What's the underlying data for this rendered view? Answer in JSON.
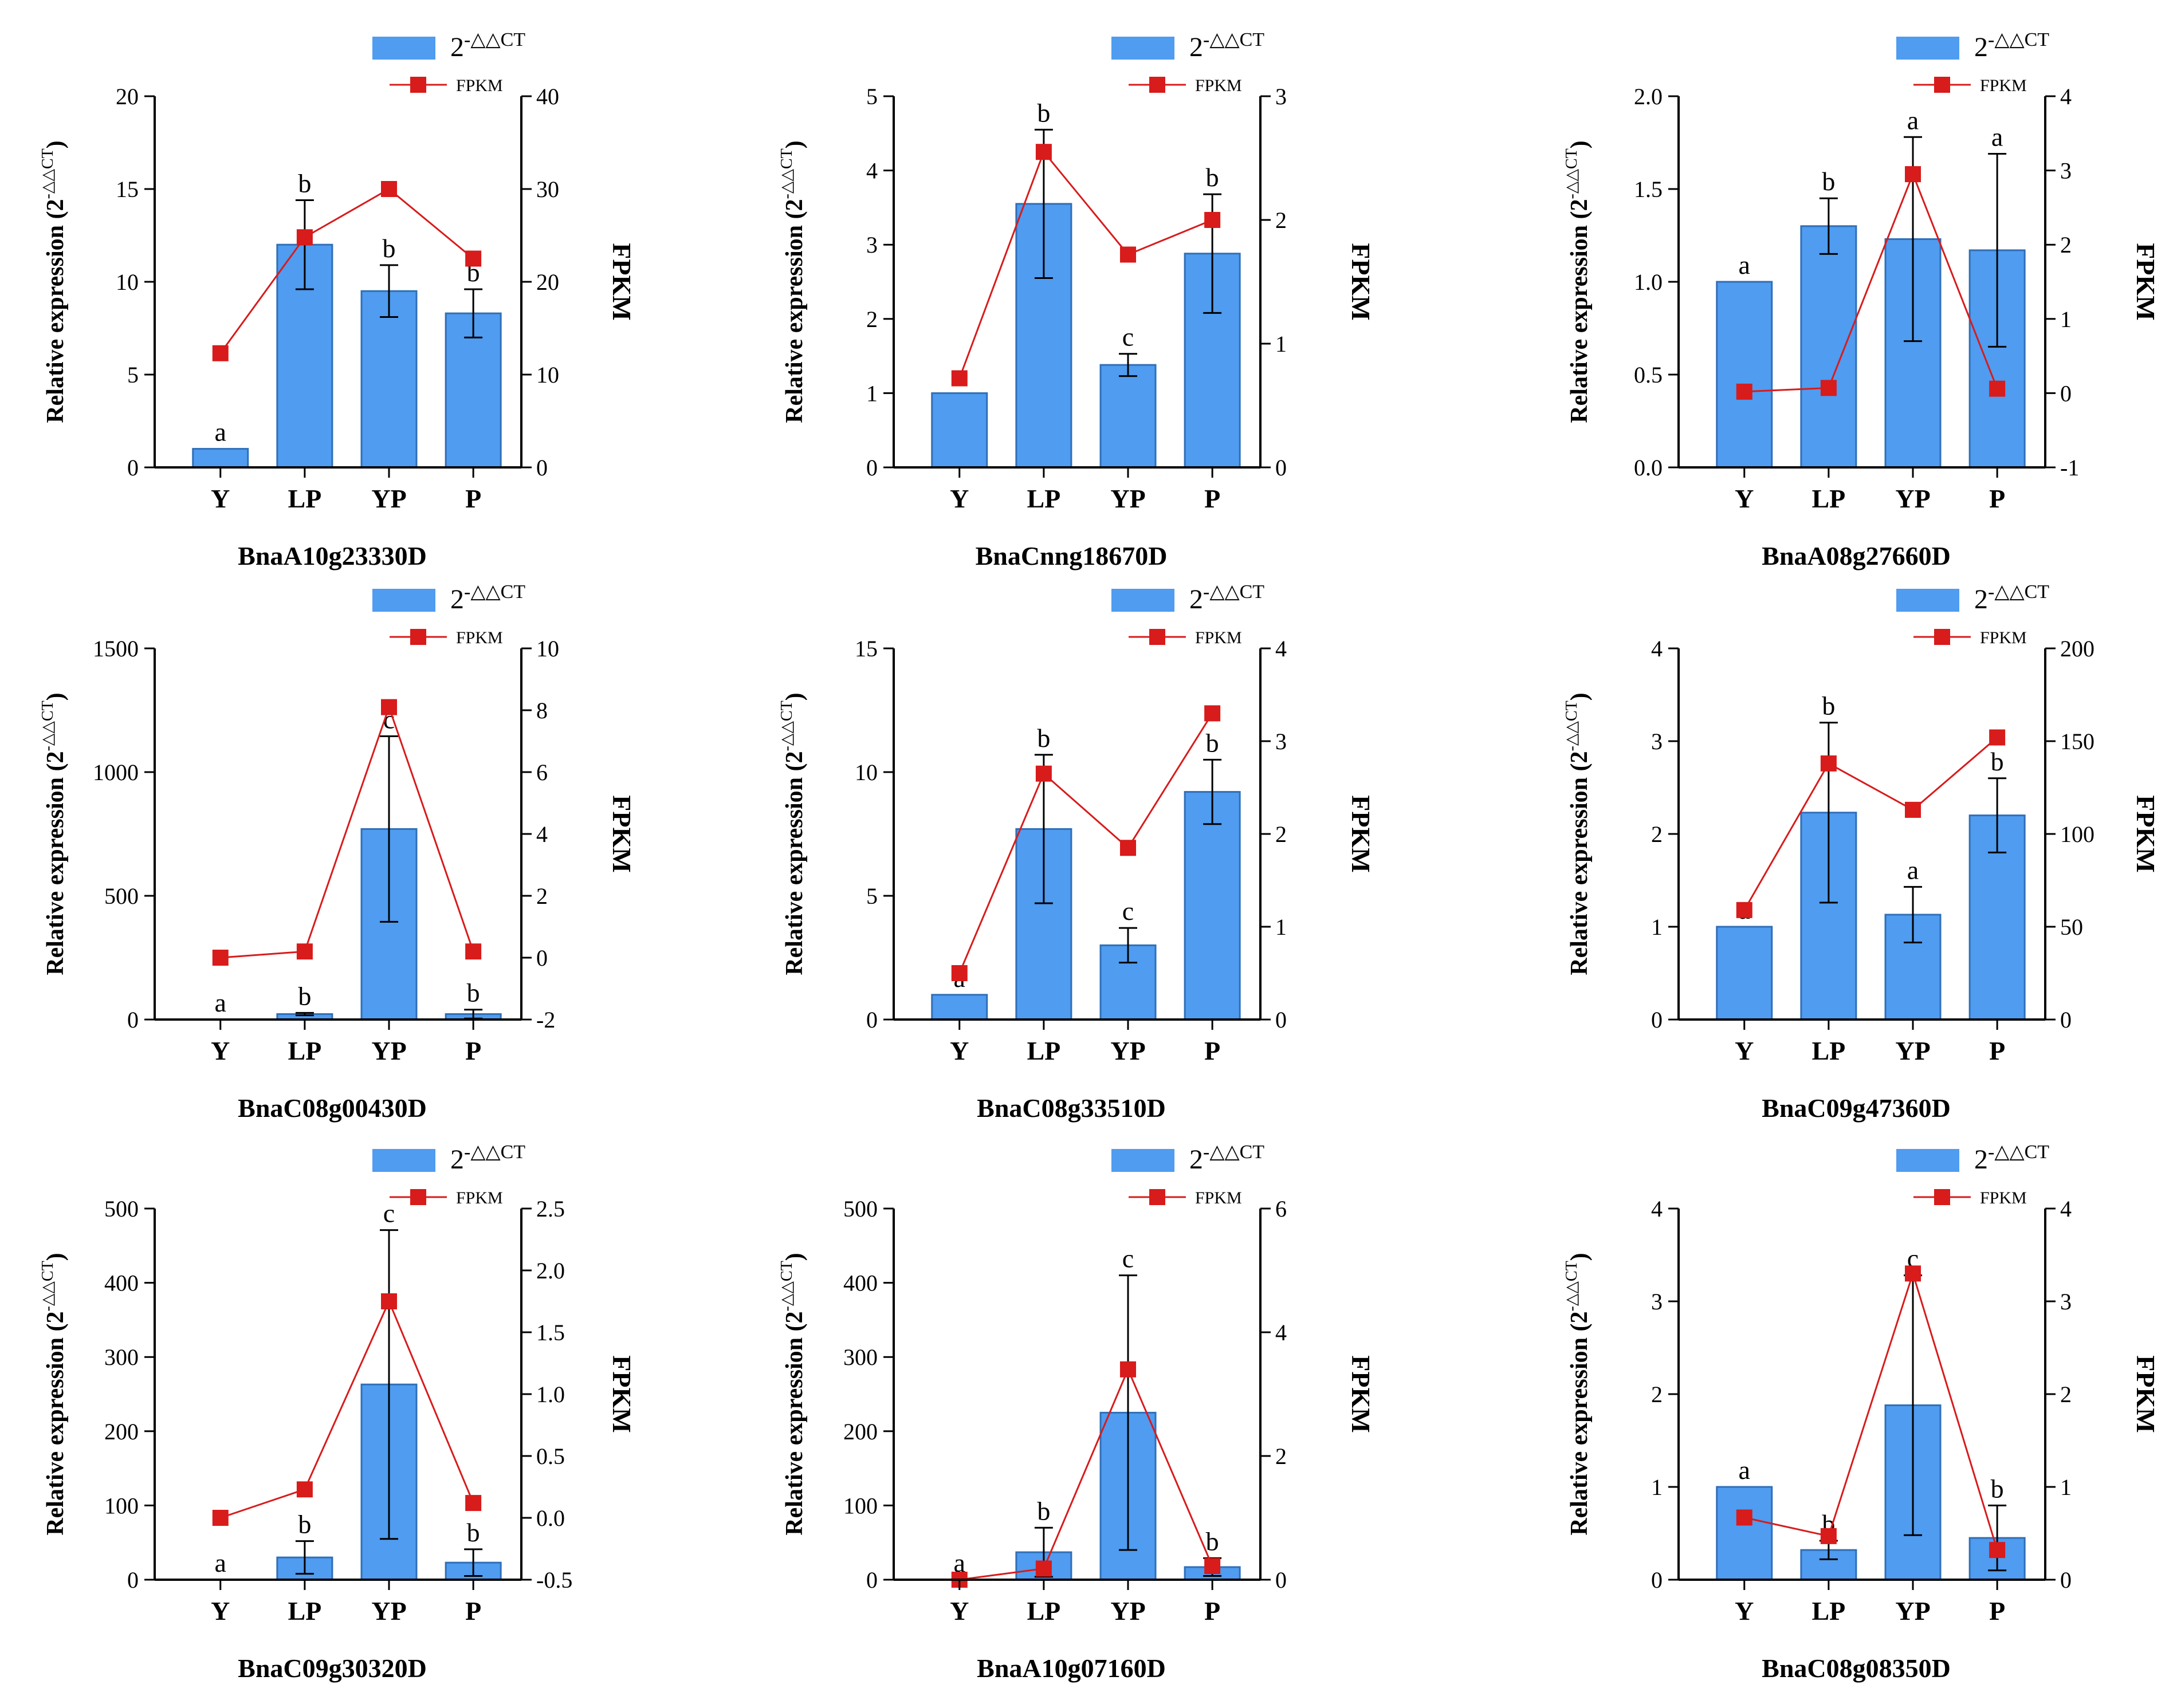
{
  "colors": {
    "bar": "#4f9cf0",
    "bar_edge": "#2f6fb8",
    "line": "#d81b1b",
    "axis": "#000000"
  },
  "legend": {
    "bar_label_base": "2",
    "bar_label_sup": "-△△CT",
    "line_label": "FPKM"
  },
  "axis_titles": {
    "left_prefix": "Relative expression (2",
    "left_sup": "-△△CT",
    "left_suffix": ")",
    "right": "FPKM"
  },
  "chart_data": [
    {
      "type": "bar+line",
      "title": "BnaA10g23330D",
      "categories": [
        "Y",
        "LP",
        "YP",
        "P"
      ],
      "series": [
        {
          "name": "2-△△CT",
          "axis": "left",
          "values": [
            1.0,
            12.0,
            9.5,
            8.3
          ],
          "errors": [
            0,
            2.4,
            1.4,
            1.3
          ],
          "labels": [
            "a",
            "b",
            "b",
            "b"
          ]
        },
        {
          "name": "FPKM",
          "axis": "right",
          "values": [
            12.3,
            24.8,
            30.0,
            22.5
          ]
        }
      ],
      "ylim": [
        0,
        20
      ],
      "yticks": [
        "0",
        "5",
        "10",
        "15",
        "20"
      ],
      "y2lim": [
        0,
        40
      ],
      "y2ticks": [
        "0",
        "10",
        "20",
        "30",
        "40"
      ]
    },
    {
      "type": "bar+line",
      "title": "BnaCnng18670D",
      "categories": [
        "Y",
        "LP",
        "YP",
        "P"
      ],
      "series": [
        {
          "name": "2-△△CT",
          "axis": "left",
          "values": [
            1.0,
            3.55,
            1.38,
            2.88
          ],
          "errors": [
            0,
            1.0,
            0.15,
            0.8
          ],
          "labels": [
            "a",
            "b",
            "c",
            "b"
          ]
        },
        {
          "name": "FPKM",
          "axis": "right",
          "values": [
            0.72,
            2.55,
            1.72,
            2.0
          ]
        }
      ],
      "ylim": [
        0,
        5
      ],
      "yticks": [
        "0",
        "1",
        "2",
        "3",
        "4",
        "5"
      ],
      "y2lim": [
        0,
        3
      ],
      "y2ticks": [
        "0",
        "1",
        "2",
        "3"
      ]
    },
    {
      "type": "bar+line",
      "title": "BnaA08g27660D",
      "categories": [
        "Y",
        "LP",
        "YP",
        "P"
      ],
      "series": [
        {
          "name": "2-△△CT",
          "axis": "left",
          "values": [
            1.0,
            1.3,
            1.23,
            1.17
          ],
          "errors": [
            0,
            0.15,
            0.55,
            0.52
          ],
          "labels": [
            "a",
            "b",
            "a",
            "a"
          ]
        },
        {
          "name": "FPKM",
          "axis": "right",
          "values": [
            0.02,
            0.07,
            2.95,
            0.06
          ]
        }
      ],
      "ylim": [
        0,
        2
      ],
      "yticks": [
        "0.0",
        "0.5",
        "1.0",
        "1.5",
        "2.0"
      ],
      "y2lim": [
        -1,
        4
      ],
      "y2ticks": [
        "-1",
        "0",
        "1",
        "2",
        "3",
        "4"
      ]
    },
    {
      "type": "bar+line",
      "title": "BnaC08g00430D",
      "categories": [
        "Y",
        "LP",
        "YP",
        "P"
      ],
      "series": [
        {
          "name": "2-△△CT",
          "axis": "left",
          "values": [
            0,
            22,
            770,
            22
          ],
          "errors": [
            0,
            5,
            375,
            18
          ],
          "labels": [
            "a",
            "b",
            "c",
            "b"
          ]
        },
        {
          "name": "FPKM",
          "axis": "right",
          "values": [
            0.0,
            0.2,
            8.1,
            0.2
          ]
        }
      ],
      "ylim": [
        0,
        1500
      ],
      "yticks": [
        "0",
        "500",
        "1000",
        "1500"
      ],
      "y2lim": [
        -2,
        10
      ],
      "y2ticks": [
        "-2",
        "0",
        "2",
        "4",
        "6",
        "8",
        "10"
      ]
    },
    {
      "type": "bar+line",
      "title": "BnaC08g33510D",
      "categories": [
        "Y",
        "LP",
        "YP",
        "P"
      ],
      "series": [
        {
          "name": "2-△△CT",
          "axis": "left",
          "values": [
            1.0,
            7.7,
            3.0,
            9.2
          ],
          "errors": [
            0,
            3.0,
            0.7,
            1.3
          ],
          "labels": [
            "a",
            "b",
            "c",
            "b"
          ]
        },
        {
          "name": "FPKM",
          "axis": "right",
          "values": [
            0.5,
            2.65,
            1.85,
            3.3
          ]
        }
      ],
      "ylim": [
        0,
        15
      ],
      "yticks": [
        "0",
        "5",
        "10",
        "15"
      ],
      "y2lim": [
        0,
        4
      ],
      "y2ticks": [
        "0",
        "1",
        "2",
        "3",
        "4"
      ]
    },
    {
      "type": "bar+line",
      "title": "BnaC09g47360D",
      "categories": [
        "Y",
        "LP",
        "YP",
        "P"
      ],
      "series": [
        {
          "name": "2-△△CT",
          "axis": "left",
          "values": [
            1.0,
            2.23,
            1.13,
            2.2
          ],
          "errors": [
            0,
            0.97,
            0.3,
            0.4
          ],
          "labels": [
            "a",
            "b",
            "a",
            "b"
          ]
        },
        {
          "name": "FPKM",
          "axis": "right",
          "values": [
            59,
            138,
            113,
            152
          ]
        }
      ],
      "ylim": [
        0,
        4
      ],
      "yticks": [
        "0",
        "1",
        "2",
        "3",
        "4"
      ],
      "y2lim": [
        0,
        200
      ],
      "y2ticks": [
        "0",
        "50",
        "100",
        "150",
        "200"
      ]
    },
    {
      "type": "bar+line",
      "title": "BnaC09g30320D",
      "categories": [
        "Y",
        "LP",
        "YP",
        "P"
      ],
      "series": [
        {
          "name": "2-△△CT",
          "axis": "left",
          "values": [
            0,
            30,
            263,
            23
          ],
          "errors": [
            0,
            22,
            208,
            18
          ],
          "labels": [
            "a",
            "b",
            "c",
            "b"
          ]
        },
        {
          "name": "FPKM",
          "axis": "right",
          "values": [
            0.0,
            0.23,
            1.75,
            0.12
          ]
        }
      ],
      "ylim": [
        0,
        500
      ],
      "yticks": [
        "0",
        "100",
        "200",
        "300",
        "400",
        "500"
      ],
      "y2lim": [
        -0.5,
        2.5
      ],
      "y2ticks": [
        "-0.5",
        "0.0",
        "0.5",
        "1.0",
        "1.5",
        "2.0",
        "2.5"
      ]
    },
    {
      "type": "bar+line",
      "title": "BnaA10g07160D",
      "categories": [
        "Y",
        "LP",
        "YP",
        "P"
      ],
      "series": [
        {
          "name": "2-△△CT",
          "axis": "left",
          "values": [
            0,
            37,
            225,
            17
          ],
          "errors": [
            0,
            33,
            185,
            12
          ],
          "labels": [
            "a",
            "b",
            "c",
            "b"
          ]
        },
        {
          "name": "FPKM",
          "axis": "right",
          "values": [
            0.0,
            0.18,
            3.4,
            0.22
          ]
        }
      ],
      "ylim": [
        0,
        500
      ],
      "yticks": [
        "0",
        "100",
        "200",
        "300",
        "400",
        "500"
      ],
      "y2lim": [
        0,
        6
      ],
      "y2ticks": [
        "0",
        "2",
        "4",
        "6"
      ]
    },
    {
      "type": "bar+line",
      "title": "BnaC08g08350D",
      "categories": [
        "Y",
        "LP",
        "YP",
        "P"
      ],
      "series": [
        {
          "name": "2-△△CT",
          "axis": "left",
          "values": [
            1.0,
            0.32,
            1.88,
            0.45
          ],
          "errors": [
            0,
            0.1,
            1.4,
            0.35
          ],
          "labels": [
            "a",
            "b",
            "c",
            "b"
          ]
        },
        {
          "name": "FPKM",
          "axis": "right",
          "values": [
            0.67,
            0.47,
            3.3,
            0.32
          ]
        }
      ],
      "ylim": [
        0,
        4
      ],
      "yticks": [
        "0",
        "1",
        "2",
        "3",
        "4"
      ],
      "y2lim": [
        0,
        4
      ],
      "y2ticks": [
        "0",
        "1",
        "2",
        "3",
        "4"
      ]
    }
  ]
}
